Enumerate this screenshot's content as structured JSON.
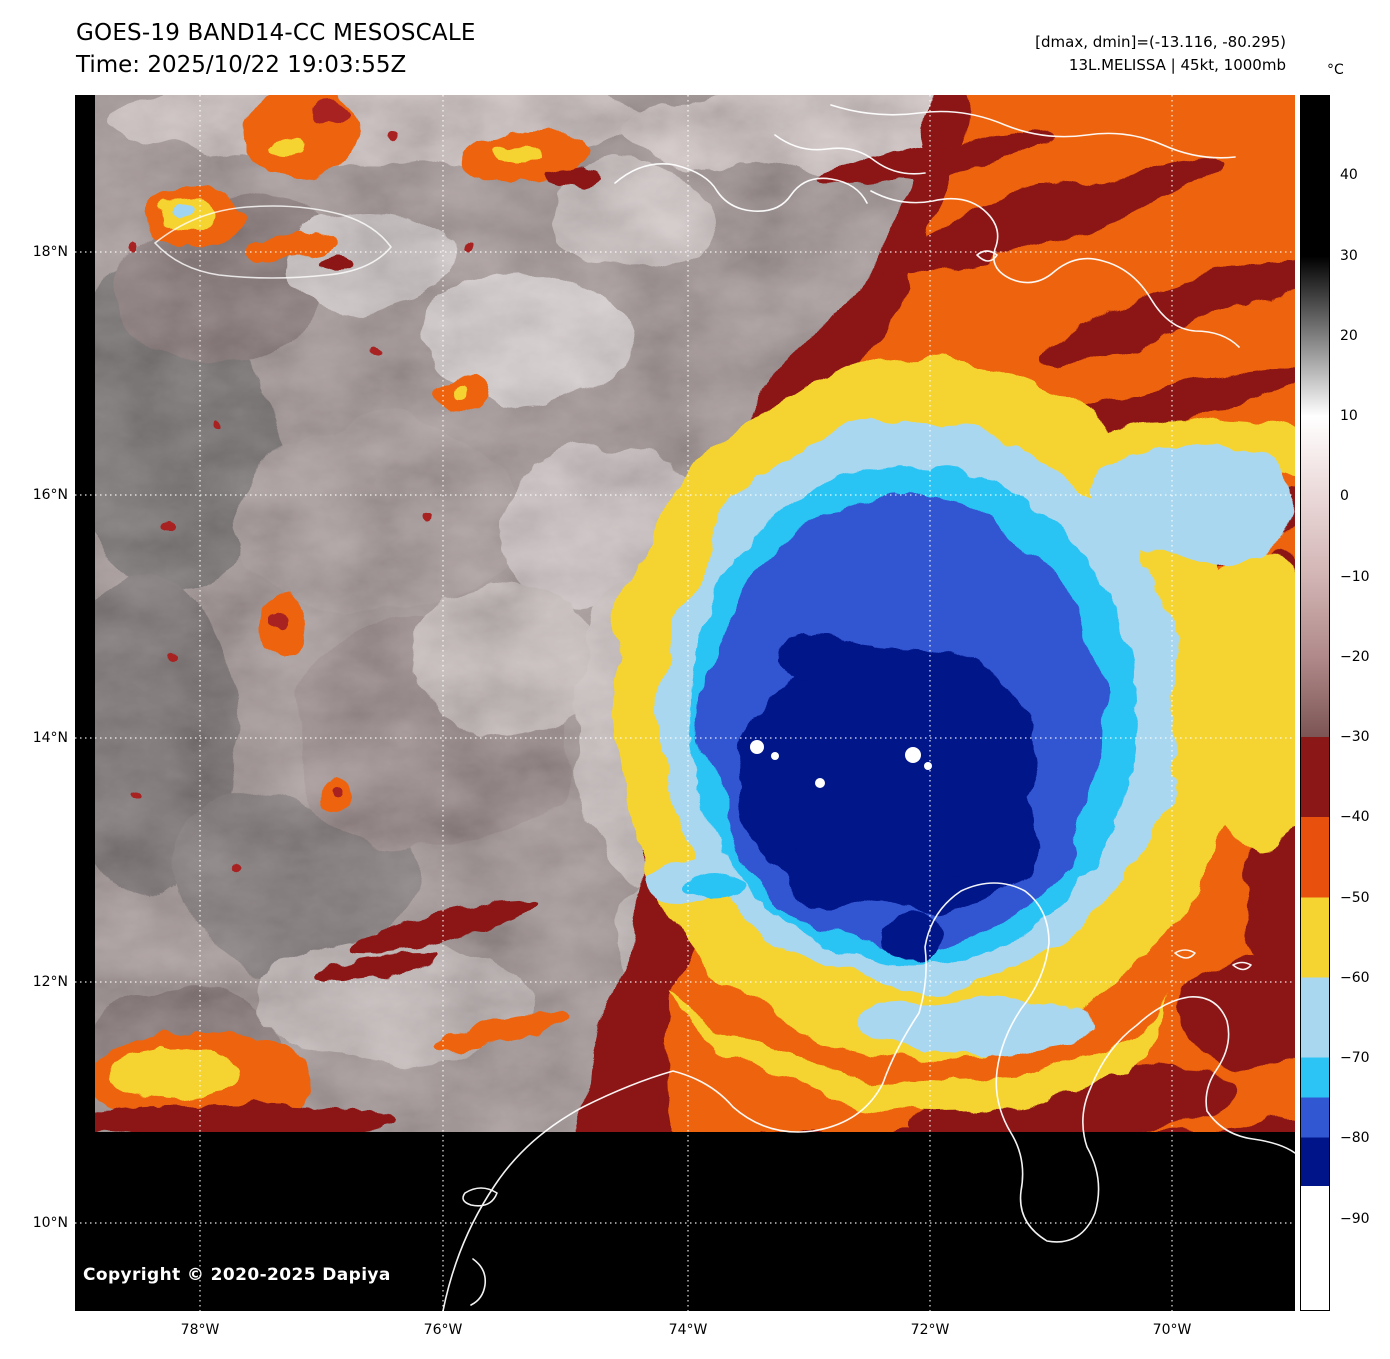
{
  "header": {
    "title": "GOES-19 BAND14-CC MESOSCALE",
    "time": "Time: 2025/10/22 19:03:55Z",
    "dmax_dmin": "[dmax, dmin]=(-13.116, -80.295)",
    "storm_info": "13L.MELISSA | 45kt, 1000mb"
  },
  "copyright": "Copyright © 2020-2025 Dapiya",
  "colorbar": {
    "unit": "°C",
    "vmax": 50,
    "vmin": -101.5,
    "ticks": [
      {
        "label": "40",
        "value": 40
      },
      {
        "label": "30",
        "value": 30
      },
      {
        "label": "20",
        "value": 20
      },
      {
        "label": "10",
        "value": 10
      },
      {
        "label": "0",
        "value": 0
      },
      {
        "label": "−10",
        "value": -10
      },
      {
        "label": "−20",
        "value": -20
      },
      {
        "label": "−30",
        "value": -30
      },
      {
        "label": "−40",
        "value": -40
      },
      {
        "label": "−50",
        "value": -50
      },
      {
        "label": "−60",
        "value": -60
      },
      {
        "label": "−70",
        "value": -70
      },
      {
        "label": "−80",
        "value": -80
      },
      {
        "label": "−90",
        "value": -90
      }
    ],
    "stops": [
      {
        "value": 50,
        "color": "#000000"
      },
      {
        "value": 30,
        "color": "#000000"
      },
      {
        "value": 10,
        "color": "#ffffff"
      },
      {
        "value": 4,
        "color": "#f3e7e7"
      },
      {
        "value": 0,
        "color": "#ead8d8"
      },
      {
        "value": -10,
        "color": "#d2b4b4"
      },
      {
        "value": -20,
        "color": "#b08a8a"
      },
      {
        "value": -30,
        "color": "#7c5454"
      },
      {
        "value": -30,
        "color": "#8c1717"
      },
      {
        "value": -40,
        "color": "#8c1717"
      },
      {
        "value": -40,
        "color": "#e8500e"
      },
      {
        "value": -50,
        "color": "#e8500e"
      },
      {
        "value": -50,
        "color": "#f5d431"
      },
      {
        "value": -60,
        "color": "#f5d431"
      },
      {
        "value": -60,
        "color": "#aad7f0"
      },
      {
        "value": -70,
        "color": "#aad7f0"
      },
      {
        "value": -70,
        "color": "#2cc4f4"
      },
      {
        "value": -75,
        "color": "#2cc4f4"
      },
      {
        "value": -75,
        "color": "#3157d2"
      },
      {
        "value": -80,
        "color": "#3157d2"
      },
      {
        "value": -80,
        "color": "#001489"
      },
      {
        "value": -86,
        "color": "#001489"
      },
      {
        "value": -86,
        "color": "#ffffff"
      },
      {
        "value": -101.5,
        "color": "#ffffff"
      }
    ]
  },
  "axes": {
    "lat_ticks": [
      "18°N",
      "16°N",
      "14°N",
      "12°N",
      "10°N"
    ],
    "lon_ticks": [
      "78°W",
      "76°W",
      "74°W",
      "72°W",
      "70°W"
    ]
  }
}
